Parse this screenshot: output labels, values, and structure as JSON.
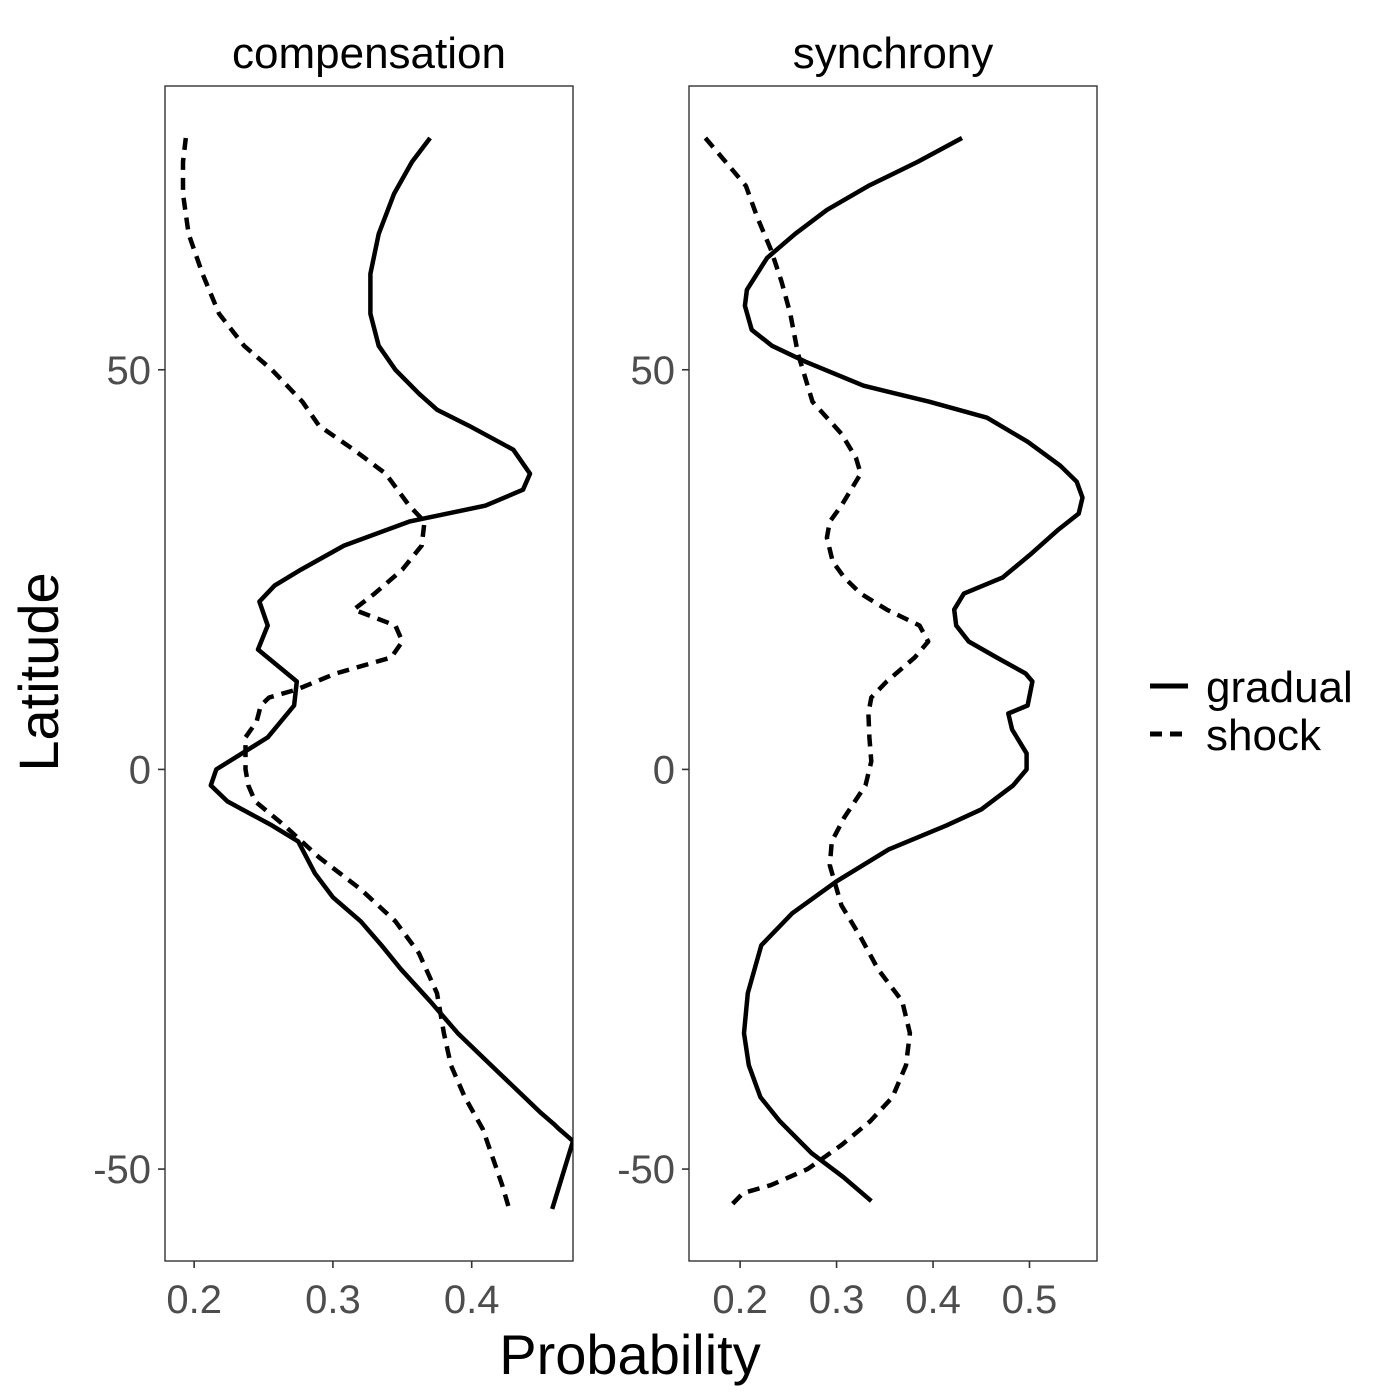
{
  "chart_data": {
    "type": "line",
    "xlabel": "Probability",
    "ylabel": "Latitude",
    "ylim": [
      -61.5,
      85.5
    ],
    "y_ticks": [
      -50,
      0,
      50
    ],
    "grid": false,
    "legend": {
      "placement": "right",
      "entries": [
        {
          "name": "gradual",
          "linetype": "solid"
        },
        {
          "name": "shock",
          "linetype": "dashed"
        }
      ]
    },
    "colors": {
      "line": "#000000",
      "frame": "#333333",
      "tick_text": "#4d4d4d"
    },
    "panels": [
      {
        "title": "compensation",
        "xlim": [
          0.179,
          0.473
        ],
        "x_ticks": [
          0.2,
          0.3,
          0.4
        ],
        "x_tick_labels": [
          "0.2",
          "0.3",
          "0.4"
        ],
        "series": [
          {
            "name": "gradual",
            "linetype": "solid",
            "points": [
              [
                0.37,
                79
              ],
              [
                0.357,
                76
              ],
              [
                0.344,
                72
              ],
              [
                0.333,
                67
              ],
              [
                0.327,
                62
              ],
              [
                0.327,
                57
              ],
              [
                0.333,
                53
              ],
              [
                0.345,
                50
              ],
              [
                0.362,
                47
              ],
              [
                0.375,
                45
              ],
              [
                0.398,
                43
              ],
              [
                0.43,
                40
              ],
              [
                0.442,
                37
              ],
              [
                0.437,
                35
              ],
              [
                0.41,
                33
              ],
              [
                0.355,
                31
              ],
              [
                0.308,
                28
              ],
              [
                0.277,
                25
              ],
              [
                0.258,
                23
              ],
              [
                0.247,
                21
              ],
              [
                0.253,
                18
              ],
              [
                0.246,
                15
              ],
              [
                0.26,
                13
              ],
              [
                0.274,
                11
              ],
              [
                0.272,
                8
              ],
              [
                0.253,
                4
              ],
              [
                0.216,
                0
              ],
              [
                0.212,
                -2
              ],
              [
                0.224,
                -4
              ],
              [
                0.256,
                -7
              ],
              [
                0.275,
                -9
              ],
              [
                0.287,
                -13
              ],
              [
                0.3,
                -16
              ],
              [
                0.32,
                -19
              ],
              [
                0.335,
                -22
              ],
              [
                0.349,
                -25
              ],
              [
                0.37,
                -29
              ],
              [
                0.39,
                -33
              ],
              [
                0.42,
                -38
              ],
              [
                0.45,
                -43
              ],
              [
                0.46,
                -44.5
              ],
              [
                0.463,
                -45
              ],
              [
                0.473,
                -46.5
              ],
              [
                0.458,
                -55
              ]
            ]
          },
          {
            "name": "shock",
            "linetype": "dashed",
            "points": [
              [
                0.194,
                79
              ],
              [
                0.192,
                76
              ],
              [
                0.192,
                72
              ],
              [
                0.196,
                67
              ],
              [
                0.206,
                62
              ],
              [
                0.218,
                57
              ],
              [
                0.236,
                53
              ],
              [
                0.256,
                50
              ],
              [
                0.278,
                46
              ],
              [
                0.29,
                43
              ],
              [
                0.315,
                40
              ],
              [
                0.338,
                37
              ],
              [
                0.355,
                33
              ],
              [
                0.366,
                31
              ],
              [
                0.364,
                28
              ],
              [
                0.35,
                25
              ],
              [
                0.33,
                22
              ],
              [
                0.315,
                20
              ],
              [
                0.345,
                18
              ],
              [
                0.35,
                16
              ],
              [
                0.342,
                14
              ],
              [
                0.302,
                12
              ],
              [
                0.274,
                10
              ],
              [
                0.254,
                9
              ],
              [
                0.248,
                8
              ],
              [
                0.245,
                6
              ],
              [
                0.237,
                4
              ],
              [
                0.237,
                0
              ],
              [
                0.239,
                -2
              ],
              [
                0.244,
                -4
              ],
              [
                0.265,
                -7
              ],
              [
                0.29,
                -11
              ],
              [
                0.32,
                -15
              ],
              [
                0.345,
                -19
              ],
              [
                0.362,
                -23
              ],
              [
                0.375,
                -28
              ],
              [
                0.38,
                -33
              ],
              [
                0.385,
                -37
              ],
              [
                0.395,
                -41
              ],
              [
                0.408,
                -45
              ],
              [
                0.416,
                -49
              ],
              [
                0.422,
                -52
              ],
              [
                0.427,
                -55
              ]
            ]
          }
        ]
      },
      {
        "title": "synchrony",
        "xlim": [
          0.147,
          0.57
        ],
        "x_ticks": [
          0.2,
          0.3,
          0.4,
          0.5
        ],
        "x_tick_labels": [
          "0.2",
          "0.3",
          "0.4",
          "0.5"
        ],
        "series": [
          {
            "name": "gradual",
            "linetype": "solid",
            "points": [
              [
                0.43,
                79
              ],
              [
                0.384,
                76
              ],
              [
                0.333,
                73
              ],
              [
                0.29,
                70
              ],
              [
                0.257,
                67
              ],
              [
                0.228,
                64
              ],
              [
                0.207,
                60
              ],
              [
                0.205,
                58
              ],
              [
                0.212,
                55
              ],
              [
                0.233,
                53
              ],
              [
                0.268,
                51
              ],
              [
                0.328,
                48
              ],
              [
                0.396,
                46
              ],
              [
                0.456,
                44
              ],
              [
                0.498,
                41
              ],
              [
                0.532,
                38
              ],
              [
                0.549,
                36
              ],
              [
                0.555,
                34
              ],
              [
                0.551,
                32
              ],
              [
                0.53,
                30
              ],
              [
                0.502,
                27
              ],
              [
                0.472,
                24
              ],
              [
                0.432,
                22
              ],
              [
                0.422,
                20
              ],
              [
                0.424,
                18
              ],
              [
                0.437,
                16
              ],
              [
                0.466,
                14
              ],
              [
                0.496,
                12
              ],
              [
                0.503,
                11
              ],
              [
                0.498,
                8
              ],
              [
                0.478,
                7
              ],
              [
                0.482,
                5
              ],
              [
                0.497,
                2
              ],
              [
                0.497,
                0
              ],
              [
                0.483,
                -2
              ],
              [
                0.45,
                -5
              ],
              [
                0.414,
                -7
              ],
              [
                0.354,
                -10
              ],
              [
                0.3,
                -14
              ],
              [
                0.254,
                -18
              ],
              [
                0.222,
                -22
              ],
              [
                0.208,
                -28
              ],
              [
                0.204,
                -33
              ],
              [
                0.209,
                -37
              ],
              [
                0.221,
                -41
              ],
              [
                0.241,
                -44
              ],
              [
                0.274,
                -48
              ],
              [
                0.307,
                -51
              ],
              [
                0.336,
                -54
              ]
            ]
          },
          {
            "name": "shock",
            "linetype": "dashed",
            "points": [
              [
                0.164,
                79
              ],
              [
                0.185,
                76
              ],
              [
                0.206,
                73
              ],
              [
                0.218,
                69
              ],
              [
                0.232,
                65
              ],
              [
                0.243,
                61
              ],
              [
                0.252,
                57
              ],
              [
                0.26,
                52
              ],
              [
                0.275,
                46
              ],
              [
                0.305,
                42
              ],
              [
                0.32,
                39
              ],
              [
                0.325,
                37
              ],
              [
                0.305,
                33
              ],
              [
                0.293,
                31
              ],
              [
                0.29,
                29
              ],
              [
                0.296,
                26
              ],
              [
                0.308,
                24
              ],
              [
                0.325,
                22
              ],
              [
                0.352,
                20
              ],
              [
                0.386,
                18
              ],
              [
                0.395,
                16
              ],
              [
                0.381,
                14
              ],
              [
                0.352,
                11
              ],
              [
                0.336,
                9
              ],
              [
                0.333,
                7
              ],
              [
                0.334,
                4
              ],
              [
                0.336,
                1
              ],
              [
                0.33,
                -2
              ],
              [
                0.308,
                -6
              ],
              [
                0.295,
                -9
              ],
              [
                0.293,
                -12
              ],
              [
                0.305,
                -17
              ],
              [
                0.325,
                -21
              ],
              [
                0.343,
                -25
              ],
              [
                0.368,
                -29
              ],
              [
                0.376,
                -33
              ],
              [
                0.372,
                -37
              ],
              [
                0.358,
                -41
              ],
              [
                0.335,
                -44
              ],
              [
                0.305,
                -47
              ],
              [
                0.27,
                -50
              ],
              [
                0.232,
                -52
              ],
              [
                0.203,
                -53
              ],
              [
                0.187,
                -55
              ]
            ]
          }
        ]
      }
    ]
  }
}
